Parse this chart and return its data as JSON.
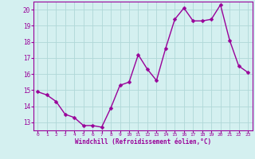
{
  "x": [
    0,
    1,
    2,
    3,
    4,
    5,
    6,
    7,
    8,
    9,
    10,
    11,
    12,
    13,
    14,
    15,
    16,
    17,
    18,
    19,
    20,
    21,
    22,
    23
  ],
  "y": [
    14.9,
    14.7,
    14.3,
    13.5,
    13.3,
    12.8,
    12.8,
    12.7,
    13.9,
    15.3,
    15.5,
    17.2,
    16.3,
    15.6,
    17.6,
    19.4,
    20.1,
    19.3,
    19.3,
    19.4,
    20.3,
    18.1,
    16.5,
    16.1
  ],
  "line_color": "#990099",
  "marker_color": "#990099",
  "bg_color": "#d4f0f0",
  "grid_color": "#b0d8d8",
  "xlabel": "Windchill (Refroidissement éolien,°C)",
  "ylim": [
    12.5,
    20.5
  ],
  "xlim": [
    -0.5,
    23.5
  ],
  "yticks": [
    13,
    14,
    15,
    16,
    17,
    18,
    19,
    20
  ],
  "xticks": [
    0,
    1,
    2,
    3,
    4,
    5,
    6,
    7,
    8,
    9,
    10,
    11,
    12,
    13,
    14,
    15,
    16,
    17,
    18,
    19,
    20,
    21,
    22,
    23
  ],
  "font_color": "#990099",
  "marker_size": 2.5,
  "line_width": 1.0
}
